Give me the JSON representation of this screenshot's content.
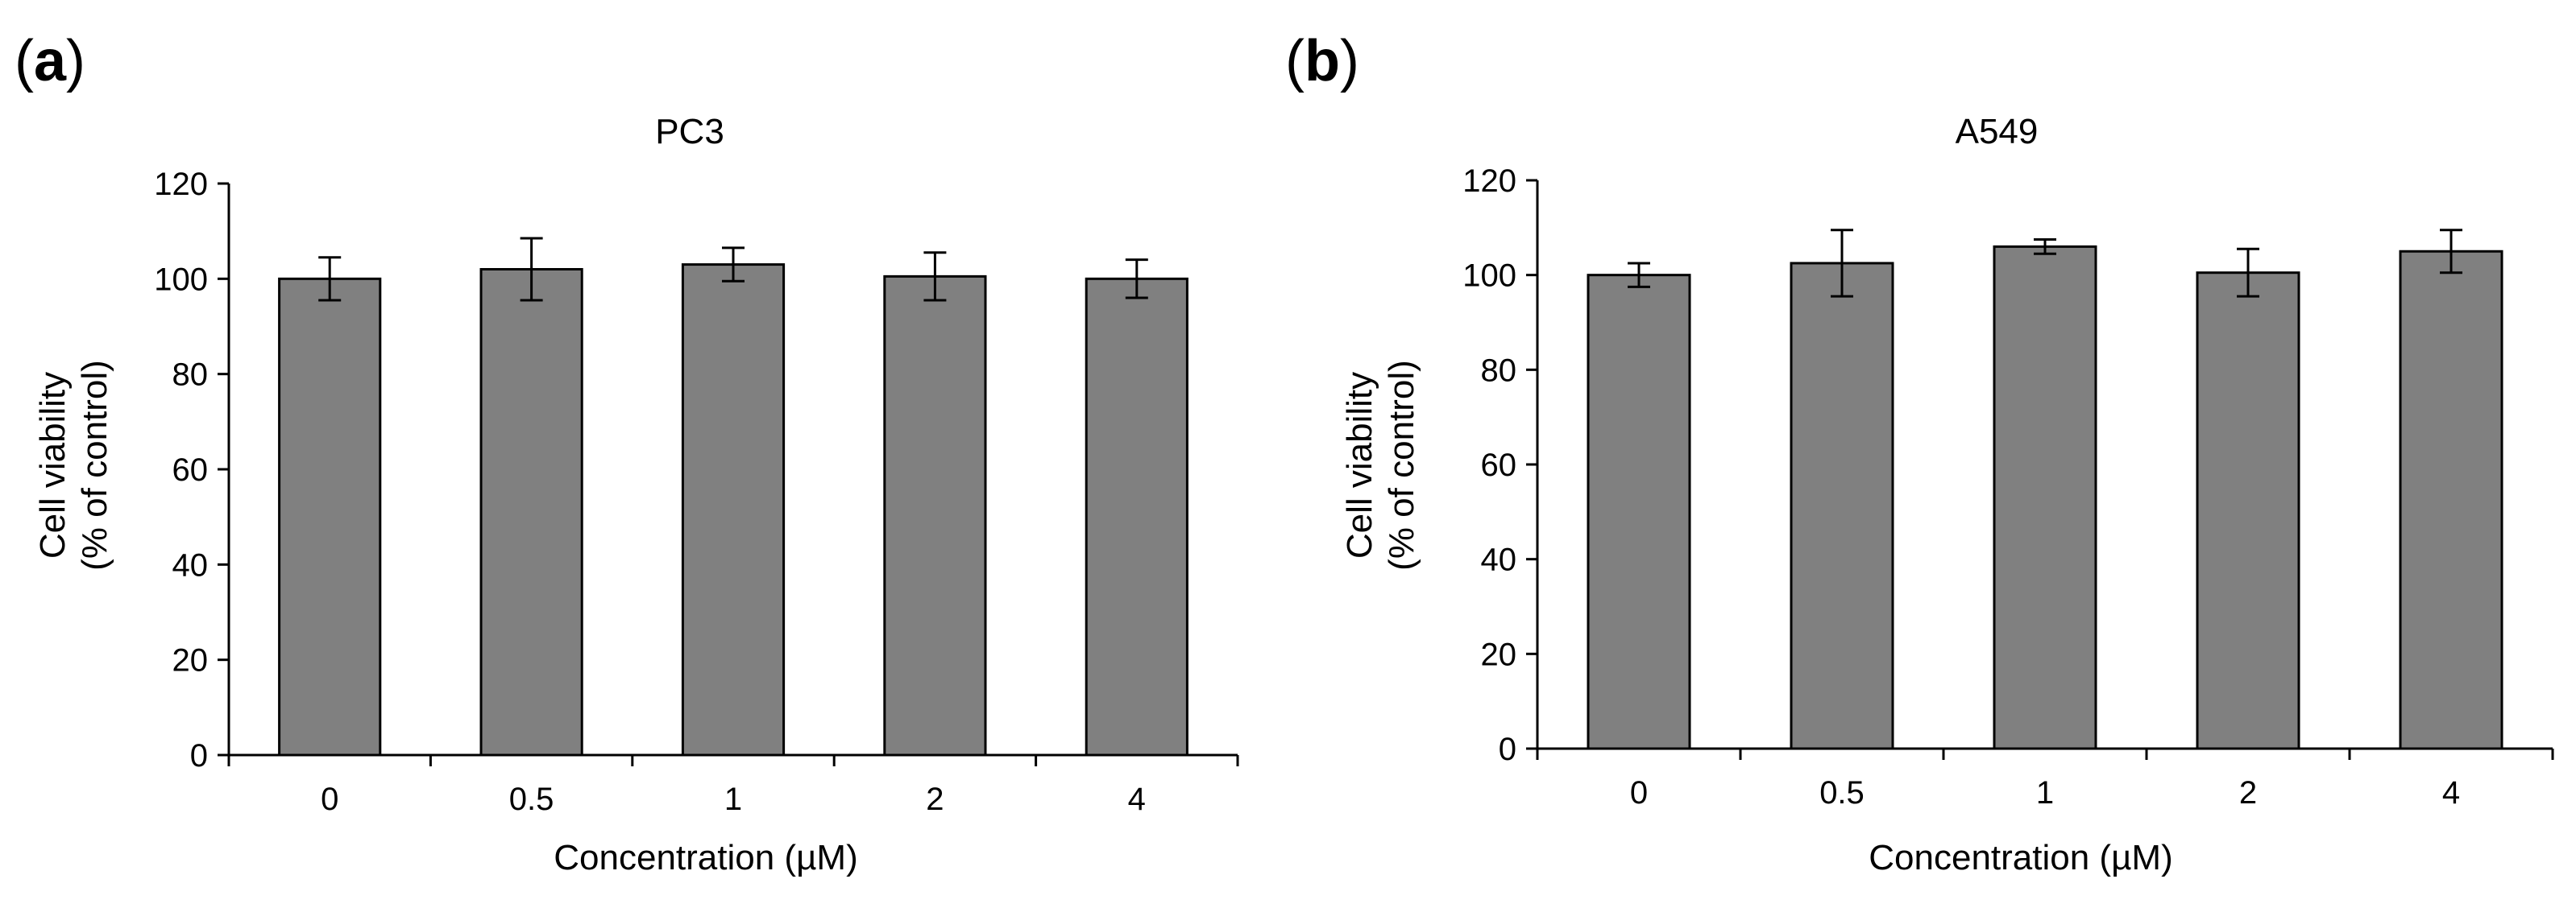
{
  "figure": {
    "background_color": "#ffffff",
    "bar_color": "#808080",
    "line_color": "#000000"
  },
  "chart_data": [
    {
      "type": "bar",
      "panel_label": "a",
      "title": "PC3",
      "xlabel": "Concentration (µM)",
      "ylabel_line1": "Cell viability",
      "ylabel_line2": "(% of control)",
      "categories": [
        "0",
        "0.5",
        "1",
        "2",
        "4"
      ],
      "values": [
        100,
        102,
        103,
        100.5,
        100
      ],
      "errors": [
        4.5,
        6.5,
        3.5,
        5,
        4
      ],
      "ylim": [
        0,
        120
      ],
      "yticks": [
        0,
        20,
        40,
        60,
        80,
        100,
        120
      ],
      "grid": false,
      "legend": "none"
    },
    {
      "type": "bar",
      "panel_label": "b",
      "title": "A549",
      "xlabel": "Concentration (µM)",
      "ylabel_line1": "Cell viability",
      "ylabel_line2": "(% of control)",
      "categories": [
        "0",
        "0.5",
        "1",
        "2",
        "4"
      ],
      "values": [
        100,
        102.5,
        106,
        100.5,
        105
      ],
      "errors": [
        2.5,
        7,
        1.5,
        5,
        4.5
      ],
      "ylim": [
        0,
        120
      ],
      "yticks": [
        0,
        20,
        40,
        60,
        80,
        100,
        120
      ],
      "grid": false,
      "legend": "none"
    }
  ]
}
